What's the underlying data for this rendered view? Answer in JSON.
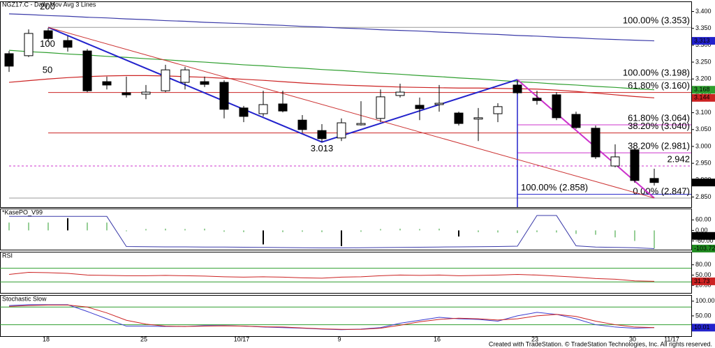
{
  "chart_data": [
    {
      "type": "candlestick",
      "title": "NGZ17.C - Daily  Mov Avg 3 Lines",
      "categories": [
        null,
        "18",
        null,
        null,
        null,
        null,
        "25",
        null,
        null,
        null,
        null,
        "10/17",
        null,
        null,
        null,
        null,
        "9",
        null,
        null,
        null,
        null,
        "16",
        null,
        null,
        null,
        null,
        "23",
        null,
        null,
        null,
        null,
        "30",
        null,
        "11/17"
      ],
      "open": [
        3.275,
        3.269,
        3.343,
        3.314,
        3.283,
        3.192,
        3.159,
        3.155,
        3.165,
        3.19,
        3.192,
        3.19,
        3.114,
        3.097,
        3.126,
        3.078,
        3.047,
        3.025,
        3.064,
        3.083,
        3.151,
        3.122,
        3.124,
        3.099,
        3.081,
        3.097,
        3.182,
        3.143,
        3.153,
        3.095,
        3.054,
        2.942,
        2.99,
        2.905
      ],
      "high": [
        3.283,
        3.347,
        3.351,
        3.327,
        3.289,
        3.207,
        3.207,
        3.182,
        3.242,
        3.236,
        3.207,
        3.196,
        3.12,
        3.165,
        3.165,
        3.093,
        3.066,
        3.083,
        3.134,
        3.169,
        3.186,
        3.145,
        3.182,
        3.103,
        3.114,
        3.128,
        3.196,
        3.165,
        3.161,
        3.103,
        3.062,
        3.006,
        2.994,
        2.934
      ],
      "low": [
        3.221,
        3.265,
        3.31,
        3.281,
        3.161,
        3.169,
        3.145,
        3.14,
        3.161,
        3.169,
        3.176,
        3.083,
        3.072,
        3.089,
        3.101,
        3.041,
        3.013,
        3.016,
        3.062,
        3.072,
        3.145,
        3.078,
        3.103,
        3.062,
        3.016,
        3.072,
        3.155,
        3.124,
        3.078,
        3.052,
        2.963,
        2.938,
        2.892,
        2.884
      ],
      "close": [
        3.238,
        3.335,
        3.32,
        3.294,
        3.165,
        3.182,
        3.153,
        3.161,
        3.227,
        3.227,
        3.184,
        3.11,
        3.089,
        3.124,
        3.105,
        3.05,
        3.023,
        3.07,
        3.068,
        3.147,
        3.161,
        3.112,
        3.128,
        3.068,
        3.085,
        3.118,
        3.159,
        3.136,
        3.085,
        3.056,
        2.969,
        2.969,
        2.899,
        2.893
      ],
      "up_color": "#ffffff",
      "down_color": "#000000",
      "series": [
        {
          "name": "200",
          "color": "#3a3aa8",
          "values": [
            3.393,
            3.391,
            3.388,
            3.386,
            3.383,
            3.381,
            3.378,
            3.376,
            3.373,
            3.371,
            3.368,
            3.366,
            3.364,
            3.361,
            3.359,
            3.356,
            3.354,
            3.351,
            3.349,
            3.346,
            3.344,
            3.342,
            3.339,
            3.337,
            3.334,
            3.332,
            3.329,
            3.327,
            3.324,
            3.322,
            3.319,
            3.317,
            3.315,
            3.313
          ]
        },
        {
          "name": "100",
          "color": "#2e9e2e",
          "values": [
            3.285,
            3.281,
            3.278,
            3.274,
            3.271,
            3.267,
            3.264,
            3.26,
            3.257,
            3.253,
            3.25,
            3.246,
            3.242,
            3.239,
            3.235,
            3.232,
            3.228,
            3.225,
            3.221,
            3.217,
            3.214,
            3.21,
            3.207,
            3.203,
            3.2,
            3.196,
            3.192,
            3.189,
            3.185,
            3.182,
            3.178,
            3.175,
            3.171,
            3.168
          ]
        },
        {
          "name": "50",
          "color": "#cc2222",
          "values": [
            3.19,
            3.195,
            3.2,
            3.204,
            3.207,
            3.209,
            3.21,
            3.21,
            3.209,
            3.207,
            3.205,
            3.202,
            3.199,
            3.196,
            3.192,
            3.188,
            3.185,
            3.182,
            3.18,
            3.178,
            3.176,
            3.175,
            3.174,
            3.173,
            3.173,
            3.172,
            3.171,
            3.17,
            3.167,
            3.163,
            3.158,
            3.153,
            3.148,
            3.144
          ]
        }
      ],
      "levels": [
        {
          "label": "100.00% (3.353)",
          "value": 3.353,
          "color": "#999999",
          "from": 2
        },
        {
          "label": "100.00% (3.198)",
          "value": 3.198,
          "color": "#999999",
          "from": 26
        },
        {
          "label": "61.80% (3.160)",
          "value": 3.16,
          "color": "#cc2222",
          "from": 2
        },
        {
          "label": "61.80% (3.064)",
          "value": 3.064,
          "color": "#cc33cc",
          "from": 26
        },
        {
          "label": "38.20% (3.040)",
          "value": 3.04,
          "color": "#cc2222",
          "from": 2
        },
        {
          "label": "38.20% (2.981)",
          "value": 2.981,
          "color": "#cc33cc",
          "from": 26
        },
        {
          "label": "2.942",
          "value": 2.942,
          "color": "#cc33cc",
          "label_color": "#000000",
          "dashed": true,
          "from": 0
        },
        {
          "label": "100.00% (2.858)",
          "value": 2.858,
          "color": "#2222cc",
          "from": 26
        },
        {
          "label": "0.00% (2.847)",
          "value": 2.847,
          "color": "#999999",
          "from": 0
        }
      ],
      "trendlines": [
        {
          "color": "#2222cc",
          "width": 2,
          "points": [
            [
              2,
              3.353
            ],
            [
              16,
              3.013
            ],
            [
              26,
              3.198
            ]
          ]
        },
        {
          "color": "#cc33cc",
          "width": 2,
          "points": [
            [
              26,
              3.198
            ],
            [
              33,
              2.847
            ]
          ]
        },
        {
          "color": "#cc3333",
          "width": 1,
          "points": [
            [
              2,
              3.353
            ],
            [
              33,
              2.847
            ]
          ]
        }
      ],
      "low_label": {
        "value": 3.013,
        "index": 16
      },
      "price_tags": [
        {
          "value": 3.313,
          "color": "#2222cc"
        },
        {
          "value": 3.168,
          "color": "#2e9e2e"
        },
        {
          "value": 3.144,
          "color": "#cc2222"
        },
        {
          "value": 2.893,
          "color": "#000000"
        }
      ],
      "ylim": [
        2.82,
        3.43
      ],
      "yticks": [
        {
          "value": 3.4,
          "label": "3.400"
        },
        {
          "value": 3.35,
          "label": "3.350"
        },
        {
          "value": 3.3,
          "label": "3.300"
        },
        {
          "value": 3.25,
          "label": "3.250"
        },
        {
          "value": 3.2,
          "label": "3.200"
        },
        {
          "value": 3.15,
          "label": "3.150"
        },
        {
          "value": 3.1,
          "label": "3.100"
        },
        {
          "value": 3.05,
          "label": "3.050"
        },
        {
          "value": 3.0,
          "label": "3.000"
        },
        {
          "value": 2.95,
          "label": "2.950"
        },
        {
          "value": 2.9,
          "label": "2.900"
        },
        {
          "value": 2.85,
          "label": "2.850"
        }
      ],
      "footer": "Created with TradeStation. © TradeStation Technologies, Inc. All rights reserved."
    },
    {
      "type": "kase",
      "title": "*KasePO_V99",
      "bars": [
        45,
        45,
        45,
        70,
        45,
        45,
        -5,
        8,
        10,
        8,
        10,
        -8,
        -10,
        -80,
        -10,
        -8,
        -10,
        -90,
        -8,
        8,
        10,
        8,
        10,
        -35,
        -10,
        -12,
        -15,
        -10,
        -12,
        -20,
        -25,
        -40,
        -60,
        -103.72
      ],
      "bar_colors": [
        "#2e9e2e",
        "#2e9e2e",
        "#2e9e2e",
        "#000000",
        "#2e9e2e",
        "#2e9e2e",
        "#2e9e2e",
        "#2e9e2e",
        "#2e9e2e",
        "#2e9e2e",
        "#2e9e2e",
        "#2e9e2e",
        "#2e9e2e",
        "#000000",
        "#2e9e2e",
        "#2e9e2e",
        "#2e9e2e",
        "#000000",
        "#2e9e2e",
        "#2e9e2e",
        "#2e9e2e",
        "#2e9e2e",
        "#2e9e2e",
        "#000000",
        "#2e9e2e",
        "#2e9e2e",
        "#2e9e2e",
        "#2e9e2e",
        "#2e9e2e",
        "#2e9e2e",
        "#2e9e2e",
        "#2e9e2e",
        "#2e9e2e",
        "#2e9e2e"
      ],
      "series": [
        {
          "color": "#3a3aa8",
          "values": [
            80,
            80,
            80,
            80,
            80,
            80,
            -92,
            -93,
            -94,
            -94,
            -95,
            -95,
            -96,
            -97,
            -98,
            -99,
            -100,
            -100,
            -99,
            -98,
            -97,
            -96,
            -95,
            -94,
            -93,
            -92,
            -90,
            85,
            85,
            -88,
            -95,
            -97,
            -99,
            -104
          ]
        }
      ],
      "price_tags": [
        {
          "value": -31.43,
          "color": "#000000"
        },
        {
          "value": -103.72,
          "color": "#1f8a1f"
        }
      ],
      "ylim": [
        -110,
        125
      ],
      "yticks": [
        {
          "value": 60,
          "label": "60.00"
        },
        {
          "value": 0,
          "label": "0.00"
        },
        {
          "value": -60,
          "label": "-60.00"
        }
      ]
    },
    {
      "type": "line",
      "title": "RSI",
      "series": [
        {
          "color": "#cc2222",
          "values": [
            52,
            58,
            57,
            55,
            50,
            49,
            48,
            48,
            49,
            48,
            47,
            45,
            44,
            45,
            44,
            42,
            41,
            44,
            45,
            48,
            50,
            49,
            50,
            48,
            49,
            50,
            52,
            50,
            47,
            44,
            40,
            38,
            33,
            31.73
          ]
        }
      ],
      "levels": [
        {
          "value": 70,
          "color": "#2e9e2e"
        },
        {
          "value": 30,
          "color": "#2e9e2e"
        }
      ],
      "price_tags": [
        {
          "value": 31.73,
          "color": "#cc2222"
        }
      ],
      "ylim": [
        -2,
        118
      ],
      "yticks": [
        {
          "value": 80,
          "label": "80.00"
        },
        {
          "value": 50,
          "label": "50.00"
        },
        {
          "value": 20,
          "label": "20.00"
        }
      ]
    },
    {
      "type": "line",
      "title": "Stochastic Slow",
      "series": [
        {
          "color": "#3a3ad0",
          "values": [
            85,
            88,
            88,
            88,
            65,
            40,
            15,
            15,
            14,
            14,
            17,
            17,
            15,
            12,
            10,
            8,
            5,
            3,
            5,
            10,
            25,
            35,
            45,
            40,
            38,
            32,
            50,
            62,
            55,
            40,
            20,
            12,
            8,
            10.01
          ]
        },
        {
          "color": "#cc2222",
          "values": [
            82,
            85,
            87,
            87,
            80,
            60,
            35,
            22,
            15,
            14,
            15,
            16,
            15,
            13,
            12,
            9,
            6,
            4,
            4,
            8,
            18,
            30,
            38,
            42,
            40,
            36,
            40,
            50,
            55,
            48,
            32,
            20,
            12,
            10
          ]
        }
      ],
      "levels": [
        {
          "value": 80,
          "color": "#2e9e2e"
        },
        {
          "value": 20,
          "color": "#2e9e2e"
        }
      ],
      "price_tags": [
        {
          "value": 10.01,
          "color": "#2222cc"
        }
      ],
      "ylim": [
        -19,
        121
      ],
      "yticks": [
        {
          "value": 100,
          "label": "100.00"
        },
        {
          "value": 50,
          "label": "50.00"
        }
      ]
    }
  ]
}
